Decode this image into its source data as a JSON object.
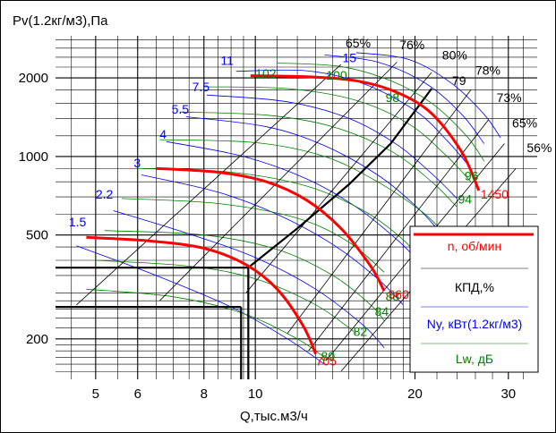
{
  "chart_data": {
    "type": "line",
    "xlabel": "Q,тыс.м3/ч",
    "ylabel": "Pv(1.2кг/м3),Па",
    "x_scale": "log",
    "y_scale": "log",
    "xlim": [
      4.2,
      34
    ],
    "ylim": [
      140,
      2900
    ],
    "x_ticks": [
      5,
      6,
      8,
      10,
      20,
      30
    ],
    "y_ticks": [
      200,
      500,
      1000,
      2000
    ],
    "grid": true,
    "legend_position": "bottom-right",
    "legend": [
      {
        "label": "n, об/мин",
        "color": "#ff0000"
      },
      {
        "label": "КПД,%",
        "color": "#000000"
      },
      {
        "label": "Ny, кВт(1.2кг/м3)",
        "color": "#0000ff"
      },
      {
        "label": "Lw, дБ",
        "color": "#008000"
      }
    ],
    "series": [
      {
        "name": "1450",
        "kind": "speed",
        "label": "1450",
        "x": [
          9.8,
          12.5,
          15.5,
          18.5,
          21.5,
          24.5,
          26.4
        ],
        "y": [
          2040,
          2020,
          1950,
          1760,
          1460,
          1040,
          740
        ]
      },
      {
        "name": "960",
        "kind": "speed",
        "label": "960",
        "x": [
          6.5,
          8.5,
          10.5,
          12.5,
          14.5,
          16.5,
          17.5
        ],
        "y": [
          900,
          870,
          800,
          680,
          530,
          380,
          305
        ]
      },
      {
        "name": "705",
        "kind": "speed",
        "label": "705",
        "x": [
          4.8,
          6.3,
          8.0,
          9.6,
          11.0,
          12.3,
          13.0
        ],
        "y": [
          490,
          475,
          445,
          385,
          310,
          225,
          175
        ]
      }
    ],
    "operating_point": {
      "x": 9.7,
      "y": 375
    },
    "efficiency_labels": [
      "65%",
      "76%",
      "80%",
      "78%",
      "73%",
      "65%",
      "56%"
    ],
    "best_efficiency_label": "79",
    "power_labels": [
      "1.5",
      "2.2",
      "3",
      "4",
      "5.5",
      "7.5",
      "11",
      "15"
    ],
    "noise_labels": [
      "102",
      "100",
      "98",
      "96",
      "94",
      "92",
      "88",
      "84",
      "82",
      "80"
    ],
    "speed_labels": [
      "1450",
      "960",
      "705"
    ]
  }
}
